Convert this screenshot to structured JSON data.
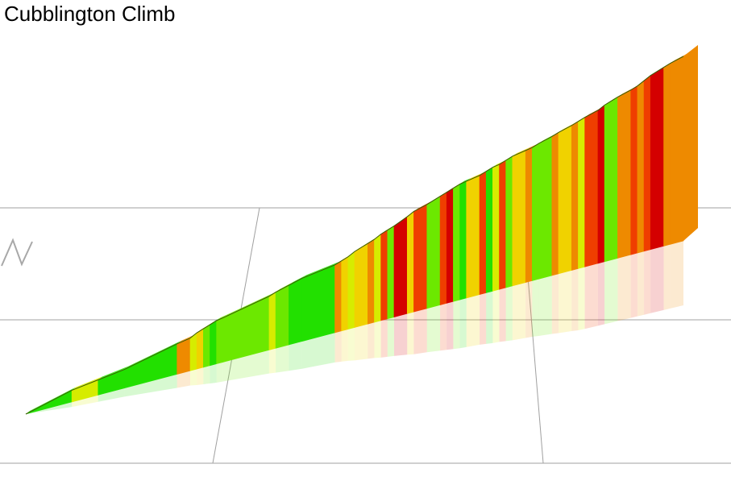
{
  "title": "Cubblington Climb",
  "chart_data": {
    "type": "area",
    "title": "Cubblington Climb",
    "view": "3d elevation profile coloured by gradient",
    "grid": true,
    "legend": "none",
    "gradient_colors": {
      "easy": "#22e000",
      "moderate": "#6ce800",
      "steady": "#d6ec00",
      "hard": "#f0d200",
      "harder": "#ee8a00",
      "very_hard": "#ef3e00",
      "steepest": "#d40000"
    },
    "segments": [
      {
        "distance": 0.0,
        "elevation": 0,
        "grade": "easy"
      },
      {
        "distance": 0.07,
        "elevation": 10,
        "grade": "easy"
      },
      {
        "distance": 0.11,
        "elevation": 13,
        "grade": "steady"
      },
      {
        "distance": 0.15,
        "elevation": 16,
        "grade": "easy"
      },
      {
        "distance": 0.23,
        "elevation": 26,
        "grade": "easy"
      },
      {
        "distance": 0.25,
        "elevation": 28,
        "grade": "harder"
      },
      {
        "distance": 0.26,
        "elevation": 31,
        "grade": "steady"
      },
      {
        "distance": 0.27,
        "elevation": 33,
        "grade": "hard"
      },
      {
        "distance": 0.28,
        "elevation": 35,
        "grade": "moderate"
      },
      {
        "distance": 0.29,
        "elevation": 37,
        "grade": "easy"
      },
      {
        "distance": 0.3,
        "elevation": 38,
        "grade": "moderate"
      },
      {
        "distance": 0.37,
        "elevation": 46,
        "grade": "moderate"
      },
      {
        "distance": 0.38,
        "elevation": 48,
        "grade": "steady"
      },
      {
        "distance": 0.4,
        "elevation": 51,
        "grade": "moderate"
      },
      {
        "distance": 0.42,
        "elevation": 54,
        "grade": "easy"
      },
      {
        "distance": 0.47,
        "elevation": 58,
        "grade": "easy"
      },
      {
        "distance": 0.48,
        "elevation": 60,
        "grade": "harder"
      },
      {
        "distance": 0.49,
        "elevation": 62,
        "grade": "hard"
      },
      {
        "distance": 0.5,
        "elevation": 65,
        "grade": "steady"
      },
      {
        "distance": 0.52,
        "elevation": 69,
        "grade": "hard"
      },
      {
        "distance": 0.53,
        "elevation": 71,
        "grade": "harder"
      },
      {
        "distance": 0.54,
        "elevation": 74,
        "grade": "steady"
      },
      {
        "distance": 0.55,
        "elevation": 76,
        "grade": "very_hard"
      },
      {
        "distance": 0.56,
        "elevation": 78,
        "grade": "moderate"
      },
      {
        "distance": 0.58,
        "elevation": 83,
        "grade": "steepest"
      },
      {
        "distance": 0.59,
        "elevation": 86,
        "grade": "hard"
      },
      {
        "distance": 0.61,
        "elevation": 89,
        "grade": "very_hard"
      },
      {
        "distance": 0.63,
        "elevation": 93,
        "grade": "moderate"
      },
      {
        "distance": 0.64,
        "elevation": 95,
        "grade": "very_hard"
      },
      {
        "distance": 0.65,
        "elevation": 97,
        "grade": "steepest"
      },
      {
        "distance": 0.66,
        "elevation": 99,
        "grade": "moderate"
      },
      {
        "distance": 0.67,
        "elevation": 100,
        "grade": "easy"
      },
      {
        "distance": 0.69,
        "elevation": 102,
        "grade": "hard"
      },
      {
        "distance": 0.7,
        "elevation": 104,
        "grade": "very_hard"
      },
      {
        "distance": 0.71,
        "elevation": 106,
        "grade": "easy"
      },
      {
        "distance": 0.72,
        "elevation": 107,
        "grade": "steady"
      },
      {
        "distance": 0.73,
        "elevation": 109,
        "grade": "very_hard"
      },
      {
        "distance": 0.74,
        "elevation": 111,
        "grade": "moderate"
      },
      {
        "distance": 0.76,
        "elevation": 113,
        "grade": "hard"
      },
      {
        "distance": 0.77,
        "elevation": 114,
        "grade": "harder"
      },
      {
        "distance": 0.78,
        "elevation": 116,
        "grade": "moderate"
      },
      {
        "distance": 0.8,
        "elevation": 119,
        "grade": "moderate"
      },
      {
        "distance": 0.81,
        "elevation": 121,
        "grade": "harder"
      },
      {
        "distance": 0.83,
        "elevation": 124,
        "grade": "hard"
      },
      {
        "distance": 0.84,
        "elevation": 126,
        "grade": "harder"
      },
      {
        "distance": 0.85,
        "elevation": 128,
        "grade": "steady"
      },
      {
        "distance": 0.87,
        "elevation": 131,
        "grade": "very_hard"
      },
      {
        "distance": 0.88,
        "elevation": 134,
        "grade": "steepest"
      },
      {
        "distance": 0.9,
        "elevation": 138,
        "grade": "moderate"
      },
      {
        "distance": 0.92,
        "elevation": 141,
        "grade": "harder"
      },
      {
        "distance": 0.93,
        "elevation": 143,
        "grade": "very_hard"
      },
      {
        "distance": 0.94,
        "elevation": 146,
        "grade": "harder"
      },
      {
        "distance": 0.95,
        "elevation": 149,
        "grade": "very_hard"
      },
      {
        "distance": 0.97,
        "elevation": 153,
        "grade": "steepest"
      },
      {
        "distance": 0.98,
        "elevation": 155,
        "grade": "harder"
      },
      {
        "distance": 1.0,
        "elevation": 158,
        "grade": "harder"
      }
    ]
  }
}
